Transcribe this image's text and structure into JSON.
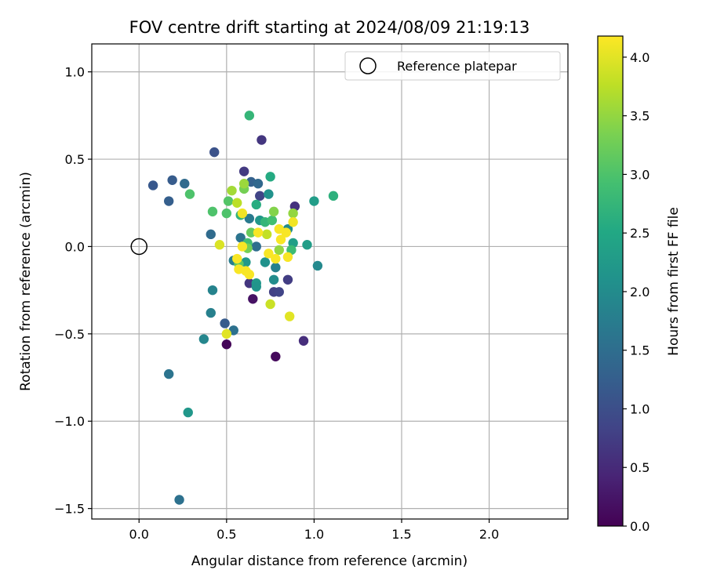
{
  "chart_data": {
    "type": "scatter",
    "title": "FOV centre drift starting at 2024/08/09 21:19:13",
    "xlabel": "Angular distance from reference (arcmin)",
    "ylabel": "Rotation from reference (arcmin)",
    "xlim": [
      -0.27,
      2.45
    ],
    "ylim": [
      -1.56,
      1.16
    ],
    "xticks": [
      0.0,
      0.5,
      1.0,
      1.5,
      2.0
    ],
    "xtick_labels": [
      "0.0",
      "0.5",
      "1.0",
      "1.5",
      "2.0"
    ],
    "yticks": [
      -1.5,
      -1.0,
      -0.5,
      0.0,
      0.5,
      1.0
    ],
    "ytick_labels": [
      "−1.5",
      "−1.0",
      "−0.5",
      "0.0",
      "0.5",
      "1.0"
    ],
    "grid": true,
    "legend": {
      "location": "top-right",
      "entries": [
        "Reference platepar"
      ]
    },
    "reference_point": {
      "x": 0.0,
      "y": 0.0
    },
    "colorbar": {
      "label": "Hours from first FF file",
      "range": [
        0.0,
        4.18
      ],
      "ticks": [
        0.0,
        0.5,
        1.0,
        1.5,
        2.0,
        2.5,
        3.0,
        3.5,
        4.0
      ],
      "tick_labels": [
        "0.0",
        "0.5",
        "1.0",
        "1.5",
        "2.0",
        "2.5",
        "3.0",
        "3.5",
        "4.0"
      ],
      "colormap": "viridis"
    },
    "points": [
      {
        "x": 0.5,
        "y": -0.56,
        "c": 0.05
      },
      {
        "x": 0.78,
        "y": -0.63,
        "c": 0.1
      },
      {
        "x": 0.65,
        "y": -0.3,
        "c": 0.2
      },
      {
        "x": 0.94,
        "y": -0.54,
        "c": 0.55
      },
      {
        "x": 0.7,
        "y": 0.61,
        "c": 0.65
      },
      {
        "x": 0.89,
        "y": 0.23,
        "c": 0.6
      },
      {
        "x": 0.6,
        "y": 0.43,
        "c": 0.7
      },
      {
        "x": 0.63,
        "y": -0.21,
        "c": 0.65
      },
      {
        "x": 0.85,
        "y": -0.19,
        "c": 0.75
      },
      {
        "x": 0.77,
        "y": -0.26,
        "c": 0.8
      },
      {
        "x": 0.8,
        "y": -0.26,
        "c": 0.85
      },
      {
        "x": 0.69,
        "y": 0.29,
        "c": 0.85
      },
      {
        "x": 0.43,
        "y": 0.54,
        "c": 1.05
      },
      {
        "x": 0.08,
        "y": 0.35,
        "c": 1.15
      },
      {
        "x": 0.19,
        "y": 0.38,
        "c": 1.2
      },
      {
        "x": 0.17,
        "y": 0.26,
        "c": 1.25
      },
      {
        "x": 0.49,
        "y": -0.44,
        "c": 1.2
      },
      {
        "x": 0.64,
        "y": 0.37,
        "c": 1.3
      },
      {
        "x": 0.68,
        "y": 0.36,
        "c": 1.4
      },
      {
        "x": 0.26,
        "y": 0.36,
        "c": 1.45
      },
      {
        "x": 0.23,
        "y": -1.45,
        "c": 1.55
      },
      {
        "x": 0.17,
        "y": -0.73,
        "c": 1.6
      },
      {
        "x": 0.54,
        "y": -0.48,
        "c": 1.55
      },
      {
        "x": 0.41,
        "y": 0.07,
        "c": 1.45
      },
      {
        "x": 0.67,
        "y": 0.0,
        "c": 1.5
      },
      {
        "x": 0.58,
        "y": 0.05,
        "c": 1.6
      },
      {
        "x": 0.63,
        "y": 0.16,
        "c": 1.7
      },
      {
        "x": 0.54,
        "y": -0.08,
        "c": 1.75
      },
      {
        "x": 0.78,
        "y": -0.12,
        "c": 1.8
      },
      {
        "x": 0.42,
        "y": -0.25,
        "c": 1.85
      },
      {
        "x": 0.41,
        "y": -0.38,
        "c": 1.8
      },
      {
        "x": 0.37,
        "y": -0.53,
        "c": 1.9
      },
      {
        "x": 0.77,
        "y": -0.19,
        "c": 2.0
      },
      {
        "x": 1.02,
        "y": -0.11,
        "c": 1.95
      },
      {
        "x": 0.72,
        "y": -0.09,
        "c": 2.1
      },
      {
        "x": 0.69,
        "y": 0.15,
        "c": 2.2
      },
      {
        "x": 0.85,
        "y": 0.1,
        "c": 2.0
      },
      {
        "x": 0.74,
        "y": 0.3,
        "c": 2.1
      },
      {
        "x": 0.67,
        "y": -0.21,
        "c": 2.2
      },
      {
        "x": 0.28,
        "y": -0.95,
        "c": 2.2
      },
      {
        "x": 0.67,
        "y": -0.23,
        "c": 2.15
      },
      {
        "x": 0.61,
        "y": -0.09,
        "c": 2.2
      },
      {
        "x": 1.0,
        "y": 0.26,
        "c": 2.3
      },
      {
        "x": 0.96,
        "y": 0.01,
        "c": 2.3
      },
      {
        "x": 0.88,
        "y": 0.02,
        "c": 2.35
      },
      {
        "x": 0.75,
        "y": 0.4,
        "c": 2.55
      },
      {
        "x": 1.11,
        "y": 0.29,
        "c": 2.65
      },
      {
        "x": 0.63,
        "y": 0.75,
        "c": 2.75
      },
      {
        "x": 0.67,
        "y": 0.24,
        "c": 2.6
      },
      {
        "x": 0.58,
        "y": 0.18,
        "c": 2.7
      },
      {
        "x": 0.72,
        "y": 0.14,
        "c": 2.75
      },
      {
        "x": 0.87,
        "y": -0.02,
        "c": 2.85
      },
      {
        "x": 0.76,
        "y": 0.15,
        "c": 2.9
      },
      {
        "x": 0.62,
        "y": 0.02,
        "c": 2.9
      },
      {
        "x": 0.29,
        "y": 0.3,
        "c": 3.0
      },
      {
        "x": 0.42,
        "y": 0.2,
        "c": 3.0
      },
      {
        "x": 0.5,
        "y": 0.19,
        "c": 3.0
      },
      {
        "x": 0.51,
        "y": 0.26,
        "c": 3.05
      },
      {
        "x": 0.57,
        "y": -0.1,
        "c": 3.1
      },
      {
        "x": 0.64,
        "y": 0.08,
        "c": 3.2
      },
      {
        "x": 0.6,
        "y": 0.33,
        "c": 3.3
      },
      {
        "x": 0.62,
        "y": -0.01,
        "c": 3.3
      },
      {
        "x": 0.77,
        "y": 0.2,
        "c": 3.4
      },
      {
        "x": 0.8,
        "y": -0.02,
        "c": 3.5
      },
      {
        "x": 0.53,
        "y": 0.32,
        "c": 3.6
      },
      {
        "x": 0.6,
        "y": 0.36,
        "c": 3.55
      },
      {
        "x": 0.88,
        "y": 0.19,
        "c": 3.5
      },
      {
        "x": 0.56,
        "y": 0.25,
        "c": 3.75
      },
      {
        "x": 0.73,
        "y": 0.07,
        "c": 3.8
      },
      {
        "x": 0.75,
        "y": -0.33,
        "c": 3.85
      },
      {
        "x": 0.46,
        "y": 0.01,
        "c": 3.95
      },
      {
        "x": 0.5,
        "y": -0.5,
        "c": 4.0
      },
      {
        "x": 0.59,
        "y": 0.19,
        "c": 4.1
      },
      {
        "x": 0.86,
        "y": -0.4,
        "c": 4.0
      },
      {
        "x": 0.88,
        "y": 0.14,
        "c": 4.1
      },
      {
        "x": 0.8,
        "y": 0.1,
        "c": 4.15
      },
      {
        "x": 0.84,
        "y": 0.08,
        "c": 4.15
      },
      {
        "x": 0.56,
        "y": -0.07,
        "c": 4.15
      },
      {
        "x": 0.57,
        "y": -0.13,
        "c": 4.15
      },
      {
        "x": 0.59,
        "y": 0.0,
        "c": 4.15
      },
      {
        "x": 0.61,
        "y": -0.14,
        "c": 4.15
      },
      {
        "x": 0.63,
        "y": -0.16,
        "c": 4.15
      },
      {
        "x": 0.68,
        "y": 0.08,
        "c": 4.15
      },
      {
        "x": 0.74,
        "y": -0.04,
        "c": 4.15
      },
      {
        "x": 0.78,
        "y": -0.07,
        "c": 4.15
      },
      {
        "x": 0.81,
        "y": 0.04,
        "c": 4.15
      },
      {
        "x": 0.85,
        "y": -0.06,
        "c": 4.15
      }
    ]
  }
}
